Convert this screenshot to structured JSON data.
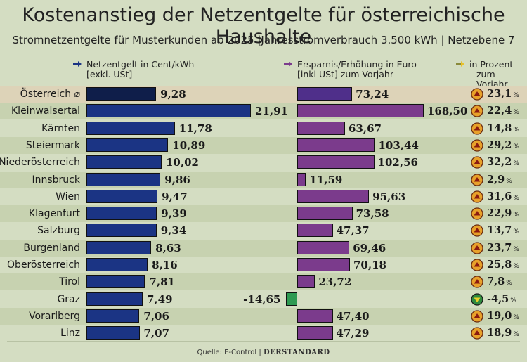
{
  "title": "Kostenanstieg der Netzentgelte für österreichische Haushalte",
  "subtitle": "Stromnetzentgelte für Musterkunden ab 2025 |Jahresstromverbrauch 3.500 kWh | Netzebene 7",
  "source": "Quelle: E-Control",
  "brand": "DERSTANDARD",
  "colors": {
    "background": "#d4ddc2",
    "net_bar": "#1b3484",
    "cost_bar": "#7b3b8c",
    "decrease_bar": "#2e9a52",
    "increase_icon": "#e8a12a",
    "decrease_icon": "#2f8a3e"
  },
  "chart_data": {
    "type": "bar",
    "title": "Kostenanstieg der Netzentgelte für österreichische Haushalte",
    "categories": [
      "Österreich ⌀",
      "Kleinwalsertal",
      "Kärnten",
      "Steiermark",
      "Niederösterreich",
      "Innsbruck",
      "Wien",
      "Klagenfurt",
      "Salzburg",
      "Burgenland",
      "Oberösterreich",
      "Tirol",
      "Graz",
      "Vorarlberg",
      "Linz"
    ],
    "series": [
      {
        "name": "Netzentgelt in Cent/kWh [exkl. USt]",
        "header_line1": "Netzentgelt in Cent/kWh",
        "header_line2": "[exkl. USt]",
        "values": [
          9.28,
          21.91,
          11.78,
          10.89,
          10.02,
          9.86,
          9.47,
          9.39,
          9.34,
          8.63,
          8.16,
          7.81,
          7.49,
          7.06,
          7.07
        ],
        "labels": [
          "9,28",
          "21,91",
          "11,78",
          "10,89",
          "10,02",
          "9,86",
          "9,47",
          "9,39",
          "9,34",
          "8,63",
          "8,16",
          "7,81",
          "7,49",
          "7,06",
          "7,07"
        ]
      },
      {
        "name": "Ersparnis/Erhöhung in Euro [inkl USt] zum Vorjahr",
        "header_line1": "Ersparnis/Erhöhung in Euro",
        "header_line2": "[inkl USt] zum Vorjahr",
        "values": [
          73.24,
          168.5,
          63.67,
          103.44,
          102.56,
          11.59,
          95.63,
          73.58,
          47.37,
          69.46,
          70.18,
          23.72,
          -14.65,
          47.4,
          47.29
        ],
        "labels": [
          "73,24",
          "168,50",
          "63,67",
          "103,44",
          "102,56",
          "11,59",
          "95,63",
          "73,58",
          "47,37",
          "69,46",
          "70,18",
          "23,72",
          "-14,65",
          "47,40",
          "47,29"
        ]
      },
      {
        "name": "in Prozent zum Vorjahr",
        "header_line1": "in Prozent",
        "header_line2": "zum Vorjahr",
        "values": [
          23.1,
          22.4,
          14.8,
          29.2,
          32.2,
          2.9,
          31.6,
          22.9,
          13.7,
          23.7,
          25.8,
          7.8,
          -4.5,
          19.0,
          18.9
        ],
        "labels": [
          "23,1",
          "22,4",
          "14,8",
          "29,2",
          "32,2",
          "2,9",
          "31,6",
          "22,9",
          "13,7",
          "23,7",
          "25,8",
          "7,8",
          "-4,5",
          "19,0",
          "18,9"
        ],
        "unit": "%"
      }
    ]
  }
}
